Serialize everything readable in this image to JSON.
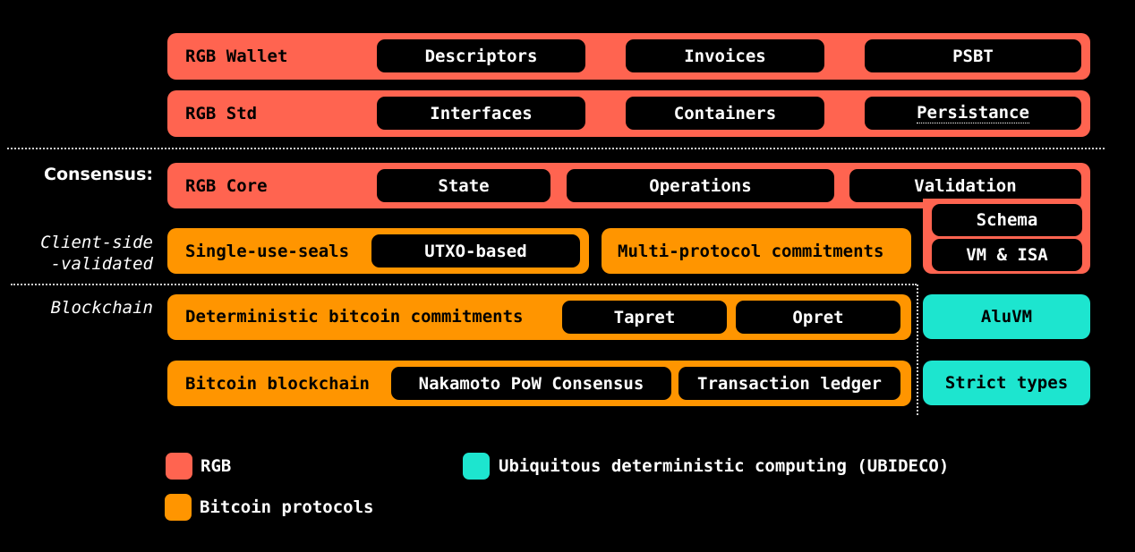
{
  "colors": {
    "rgb": "#ff6450",
    "bitcoin": "#ff9500",
    "ubideco": "#1de5cf",
    "pill": "#000000"
  },
  "side_labels": {
    "consensus": "Consensus:",
    "client_side_line1": "Client-side",
    "client_side_line2": "-validated",
    "blockchain": "Blockchain"
  },
  "rows": {
    "wallet": {
      "label": "RGB Wallet",
      "items": [
        "Descriptors",
        "Invoices",
        "PSBT"
      ]
    },
    "std": {
      "label": "RGB Std",
      "items": [
        "Interfaces",
        "Containers",
        "Persistance"
      ]
    },
    "core": {
      "label": "RGB Core",
      "items": [
        "State",
        "Operations",
        "Validation"
      ],
      "extra_items": [
        "Schema",
        "VM & ISA"
      ]
    },
    "seals": {
      "label": "Single-use-seals",
      "items": [
        "UTXO-based"
      ]
    },
    "mpc": {
      "label": "Multi-protocol commitments"
    },
    "dbc": {
      "label": "Deterministic bitcoin commitments",
      "items": [
        "Tapret",
        "Opret"
      ]
    },
    "blockchain": {
      "label": "Bitcoin blockchain",
      "items": [
        "Nakamoto PoW Consensus",
        "Transaction ledger"
      ]
    },
    "aluvm": {
      "label": "AluVM"
    },
    "strict_types": {
      "label": "Strict types"
    }
  },
  "legend": {
    "rgb": "RGB",
    "bitcoin": "Bitcoin protocols",
    "ubideco": "Ubiquitous deterministic computing (UBIDECO)"
  }
}
